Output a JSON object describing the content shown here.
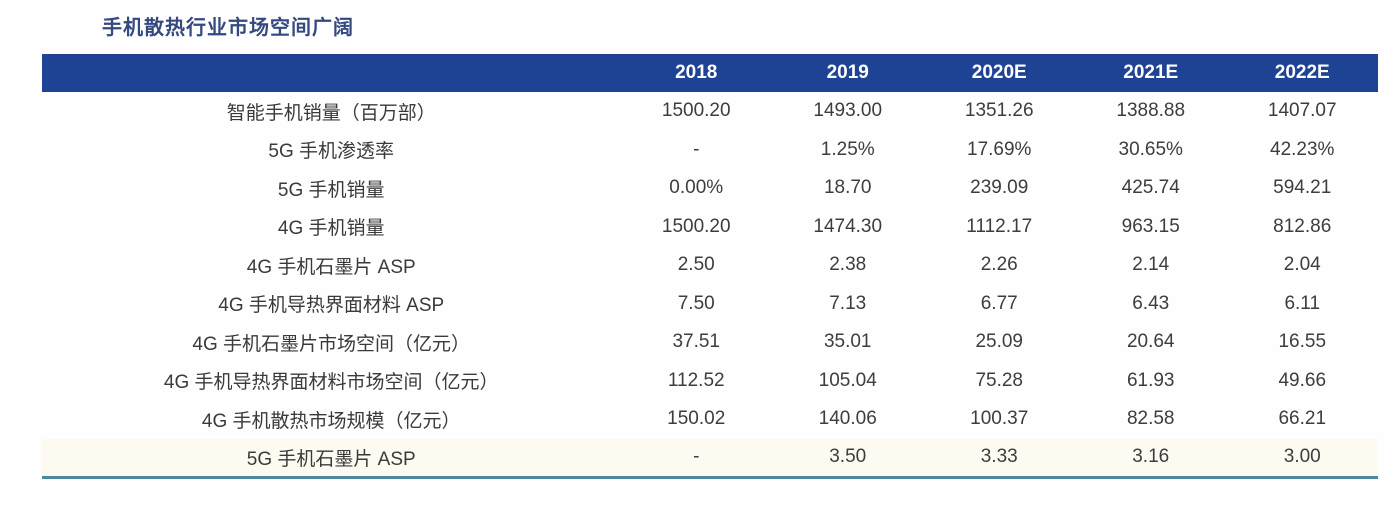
{
  "title": "手机散热行业市场空间广阔",
  "colors": {
    "header_bg": "#1f4394",
    "header_text": "#ffffff",
    "title_text": "#34497f",
    "body_text": "#3d3d3d",
    "bottom_rule": "#4e87a0"
  },
  "chart_data": {
    "type": "table",
    "title": "手机散热行业市场空间广阔",
    "columns": [
      "",
      "2018",
      "2019",
      "2020E",
      "2021E",
      "2022E"
    ],
    "rows": [
      {
        "label": "智能手机销量（百万部）",
        "values": [
          "1500.20",
          "1493.00",
          "1351.26",
          "1388.88",
          "1407.07"
        ]
      },
      {
        "label": "5G 手机渗透率",
        "values": [
          "-",
          "1.25%",
          "17.69%",
          "30.65%",
          "42.23%"
        ]
      },
      {
        "label": "5G 手机销量",
        "values": [
          "0.00%",
          "18.70",
          "239.09",
          "425.74",
          "594.21"
        ]
      },
      {
        "label": "4G 手机销量",
        "values": [
          "1500.20",
          "1474.30",
          "1112.17",
          "963.15",
          "812.86"
        ]
      },
      {
        "label": "4G 手机石墨片 ASP",
        "values": [
          "2.50",
          "2.38",
          "2.26",
          "2.14",
          "2.04"
        ]
      },
      {
        "label": "4G 手机导热界面材料 ASP",
        "values": [
          "7.50",
          "7.13",
          "6.77",
          "6.43",
          "6.11"
        ]
      },
      {
        "label": "4G 手机石墨片市场空间（亿元）",
        "values": [
          "37.51",
          "35.01",
          "25.09",
          "20.64",
          "16.55"
        ]
      },
      {
        "label": "4G 手机导热界面材料市场空间（亿元）",
        "values": [
          "112.52",
          "105.04",
          "75.28",
          "61.93",
          "49.66"
        ]
      },
      {
        "label": "4G 手机散热市场规模（亿元）",
        "values": [
          "150.02",
          "140.06",
          "100.37",
          "82.58",
          "66.21"
        ]
      },
      {
        "label": "5G 手机石墨片 ASP",
        "values": [
          "-",
          "3.50",
          "3.33",
          "3.16",
          "3.00"
        ]
      }
    ]
  }
}
